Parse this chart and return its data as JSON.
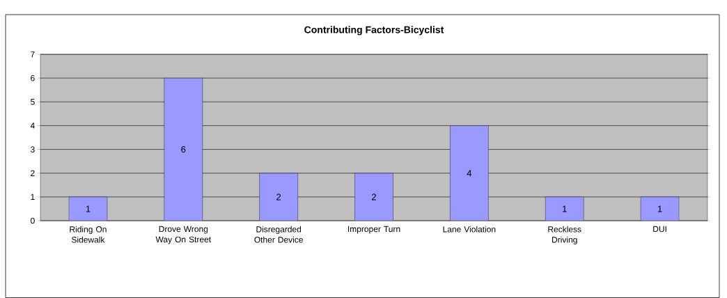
{
  "chart_data": {
    "type": "bar",
    "title": "Contributing Factors-Bicyclist",
    "categories": [
      "Riding On Sidewalk",
      "Drove Wrong Way On Street",
      "Disregarded Other Device",
      "Improper Turn",
      "Lane Violation",
      "Reckless Driving",
      "DUI"
    ],
    "values": [
      1,
      6,
      2,
      2,
      4,
      1,
      1
    ],
    "color": "#9999ff",
    "ylim": [
      0,
      7
    ],
    "yticks": [
      0,
      1,
      2,
      3,
      4,
      5,
      6,
      7
    ],
    "grid": "y",
    "data_labels": true
  }
}
